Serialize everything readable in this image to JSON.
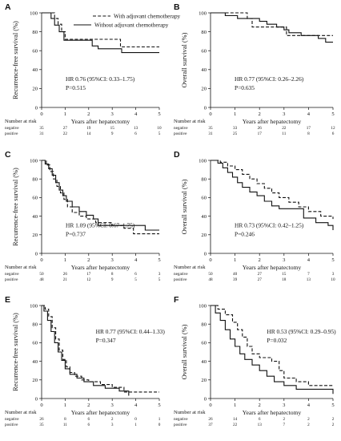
{
  "legend": {
    "with_label": "With adjuvant chemotherapy",
    "without_label": "Without adjuvant chemotherapy"
  },
  "common": {
    "xlabel": "Years after hepatectomy",
    "risk_header": "Number at risk",
    "row_negative": "negative",
    "row_positive": "positive"
  },
  "chart_data": [
    {
      "id": "A",
      "type": "line",
      "letter": "A",
      "ylabel": "Recurrence-free survival (%)",
      "xlim": [
        0,
        5
      ],
      "ylim": [
        0,
        100
      ],
      "xticks": [
        "0",
        "1",
        "2",
        "3",
        "4",
        "5"
      ],
      "yticks": [
        "0",
        "20",
        "40",
        "60",
        "80",
        "100"
      ],
      "hr_text": "HR 0.76 (95%CI: 0.33–1.75)",
      "p_text": "P=0.515",
      "annot_pos": "left",
      "series": [
        {
          "name": "With adjuvant chemotherapy",
          "dashed": true,
          "x": [
            0,
            0.55,
            0.7,
            0.85,
            1.0,
            1.3,
            3.35,
            5.0
          ],
          "y": [
            100,
            94,
            88,
            80,
            72,
            72,
            64,
            64
          ]
        },
        {
          "name": "Without adjuvant chemotherapy",
          "dashed": false,
          "x": [
            0,
            0.4,
            0.55,
            0.75,
            0.95,
            2.15,
            2.4,
            3.4,
            5.0
          ],
          "y": [
            100,
            94,
            87,
            80,
            71,
            65,
            62,
            58,
            58
          ]
        }
      ],
      "risk": {
        "negative": [
          "35",
          "27",
          "19",
          "15",
          "13",
          "10"
        ],
        "positive": [
          "31",
          "22",
          "14",
          "9",
          "6",
          "5"
        ]
      }
    },
    {
      "id": "B",
      "type": "line",
      "letter": "B",
      "ylabel": "Overall survival (%)",
      "xlim": [
        0,
        5
      ],
      "ylim": [
        0,
        100
      ],
      "xticks": [
        "0",
        "1",
        "2",
        "3",
        "4",
        "5"
      ],
      "yticks": [
        "0",
        "20",
        "40",
        "60",
        "80",
        "100"
      ],
      "hr_text": "HR 0.77 (95%CI: 0.26–2.26)",
      "p_text": "P=0.635",
      "annot_pos": "left",
      "series": [
        {
          "name": "With adjuvant chemotherapy",
          "dashed": true,
          "x": [
            0,
            1.0,
            1.5,
            1.7,
            2.6,
            3.1,
            4.0,
            5.0
          ],
          "y": [
            100,
            100,
            94,
            85,
            85,
            76,
            76,
            76
          ]
        },
        {
          "name": "Without adjuvant chemotherapy",
          "dashed": false,
          "x": [
            0,
            0.6,
            1.1,
            2.0,
            2.3,
            2.7,
            3.0,
            3.2,
            3.7,
            4.4,
            4.7,
            5.0
          ],
          "y": [
            100,
            97,
            94,
            91,
            88,
            85,
            82,
            79,
            76,
            73,
            69,
            69
          ]
        }
      ],
      "risk": {
        "negative": [
          "35",
          "33",
          "26",
          "22",
          "17",
          "12"
        ],
        "positive": [
          "31",
          "25",
          "17",
          "11",
          "8",
          "6"
        ]
      }
    },
    {
      "id": "C",
      "type": "line",
      "letter": "C",
      "ylabel": "Recurrence-free survival (%)",
      "xlim": [
        0,
        5
      ],
      "ylim": [
        0,
        100
      ],
      "xticks": [
        "0",
        "1",
        "2",
        "3",
        "4",
        "5"
      ],
      "yticks": [
        "0",
        "20",
        "40",
        "60",
        "80",
        "100"
      ],
      "hr_text": "HR 1.09 (95%CI: 0.67–1.75)",
      "p_text": "P=0.737",
      "annot_pos": "left",
      "series": [
        {
          "name": "With adjuvant chemotherapy",
          "dashed": true,
          "x": [
            0,
            0.2,
            0.35,
            0.5,
            0.65,
            0.8,
            0.95,
            1.1,
            1.3,
            1.6,
            1.9,
            2.3,
            3.0,
            3.5,
            3.9,
            5.0
          ],
          "y": [
            100,
            95,
            88,
            80,
            72,
            65,
            58,
            50,
            44,
            40,
            37,
            33,
            30,
            27,
            21,
            21
          ]
        },
        {
          "name": "Without adjuvant chemotherapy",
          "dashed": false,
          "x": [
            0,
            0.15,
            0.3,
            0.45,
            0.6,
            0.75,
            0.9,
            1.05,
            1.3,
            1.6,
            1.9,
            2.2,
            2.4,
            3.0,
            4.4,
            5.0
          ],
          "y": [
            100,
            96,
            91,
            84,
            76,
            68,
            62,
            56,
            50,
            45,
            41,
            37,
            30,
            30,
            25,
            25
          ]
        }
      ],
      "risk": {
        "negative": [
          "50",
          "26",
          "17",
          "8",
          "6",
          "3"
        ],
        "positive": [
          "48",
          "21",
          "12",
          "9",
          "5",
          "5"
        ]
      }
    },
    {
      "id": "D",
      "type": "line",
      "letter": "D",
      "ylabel": "Overall survival (%)",
      "xlim": [
        0,
        5
      ],
      "ylim": [
        0,
        100
      ],
      "xticks": [
        "0",
        "1",
        "2",
        "3",
        "4",
        "5"
      ],
      "yticks": [
        "0",
        "20",
        "40",
        "60",
        "80",
        "100"
      ],
      "hr_text": "HR 0.73 (95%CI: 0.42–1.25)",
      "p_text": "P=0.246",
      "annot_pos": "left",
      "series": [
        {
          "name": "With adjuvant chemotherapy",
          "dashed": true,
          "x": [
            0,
            0.4,
            0.7,
            1.0,
            1.3,
            1.6,
            1.9,
            2.2,
            2.5,
            2.8,
            3.2,
            3.6,
            4.0,
            4.5,
            5.0
          ],
          "y": [
            100,
            98,
            94,
            90,
            85,
            80,
            75,
            70,
            65,
            60,
            55,
            50,
            45,
            40,
            37
          ]
        },
        {
          "name": "Without adjuvant chemotherapy",
          "dashed": false,
          "x": [
            0,
            0.3,
            0.5,
            0.7,
            0.9,
            1.1,
            1.3,
            1.6,
            1.9,
            2.2,
            2.5,
            2.8,
            3.2,
            3.8,
            4.3,
            4.8,
            5.0
          ],
          "y": [
            100,
            97,
            92,
            87,
            82,
            76,
            71,
            66,
            62,
            56,
            51,
            48,
            48,
            38,
            33,
            30,
            25
          ]
        }
      ],
      "risk": {
        "negative": [
          "50",
          "40",
          "27",
          "15",
          "7",
          "3"
        ],
        "positive": [
          "48",
          "39",
          "27",
          "18",
          "13",
          "10"
        ]
      }
    },
    {
      "id": "E",
      "type": "line",
      "letter": "E",
      "ylabel": "Recurrence-free survival (%)",
      "xlim": [
        0,
        5
      ],
      "ylim": [
        0,
        100
      ],
      "xticks": [
        "0",
        "1",
        "2",
        "3",
        "4",
        "5"
      ],
      "yticks": [
        "0",
        "20",
        "40",
        "60",
        "80",
        "100"
      ],
      "hr_text": "HR 0.77 (95%CI: 0.44–1.33)",
      "p_text": "P=0.347",
      "annot_pos": "right",
      "series": [
        {
          "name": "With adjuvant chemotherapy",
          "dashed": true,
          "x": [
            0,
            0.15,
            0.3,
            0.45,
            0.6,
            0.75,
            0.9,
            1.05,
            1.2,
            1.4,
            1.7,
            2.0,
            2.5,
            3.0,
            3.5,
            5.0
          ],
          "y": [
            100,
            96,
            88,
            76,
            64,
            52,
            42,
            34,
            28,
            24,
            20,
            18,
            15,
            12,
            7,
            7
          ]
        },
        {
          "name": "Without adjuvant chemotherapy",
          "dashed": false,
          "x": [
            0,
            0.1,
            0.25,
            0.4,
            0.55,
            0.7,
            0.85,
            1.0,
            1.2,
            1.5,
            1.8,
            2.2,
            2.7,
            3.3,
            3.7
          ],
          "y": [
            100,
            94,
            84,
            72,
            60,
            50,
            41,
            32,
            26,
            22,
            18,
            14,
            11,
            8,
            3
          ]
        }
      ],
      "risk": {
        "negative": [
          "26",
          "8",
          "6",
          "2",
          "0",
          "1"
        ],
        "positive": [
          "35",
          "11",
          "6",
          "3",
          "1",
          "0"
        ]
      }
    },
    {
      "id": "F",
      "type": "line",
      "letter": "F",
      "ylabel": "Overall survival (%)",
      "xlim": [
        0,
        5
      ],
      "ylim": [
        0,
        100
      ],
      "xticks": [
        "0",
        "1",
        "2",
        "3",
        "4",
        "5"
      ],
      "yticks": [
        "0",
        "20",
        "40",
        "60",
        "80",
        "100"
      ],
      "hr_text": "HR 0.53 (95%CI: 0.29–0.95)",
      "p_text": "P=0.032",
      "annot_pos": "right",
      "series": [
        {
          "name": "With adjuvant chemotherapy",
          "dashed": true,
          "x": [
            0,
            0.3,
            0.6,
            0.9,
            1.1,
            1.3,
            1.5,
            1.7,
            2.0,
            2.5,
            2.8,
            3.0,
            3.5,
            4.0,
            5.0
          ],
          "y": [
            100,
            96,
            90,
            82,
            74,
            66,
            56,
            48,
            44,
            40,
            30,
            22,
            18,
            14,
            14
          ]
        },
        {
          "name": "Without adjuvant chemotherapy",
          "dashed": false,
          "x": [
            0,
            0.2,
            0.4,
            0.6,
            0.8,
            1.0,
            1.2,
            1.4,
            1.7,
            2.0,
            2.3,
            2.6,
            3.0,
            3.5,
            4.0,
            4.8,
            5.0
          ],
          "y": [
            100,
            92,
            84,
            74,
            64,
            56,
            48,
            42,
            36,
            30,
            24,
            18,
            14,
            10,
            10,
            10,
            5
          ]
        }
      ],
      "risk": {
        "negative": [
          "26",
          "14",
          "6",
          "2",
          "2",
          "2"
        ],
        "positive": [
          "37",
          "22",
          "13",
          "7",
          "2",
          "2"
        ]
      }
    }
  ]
}
